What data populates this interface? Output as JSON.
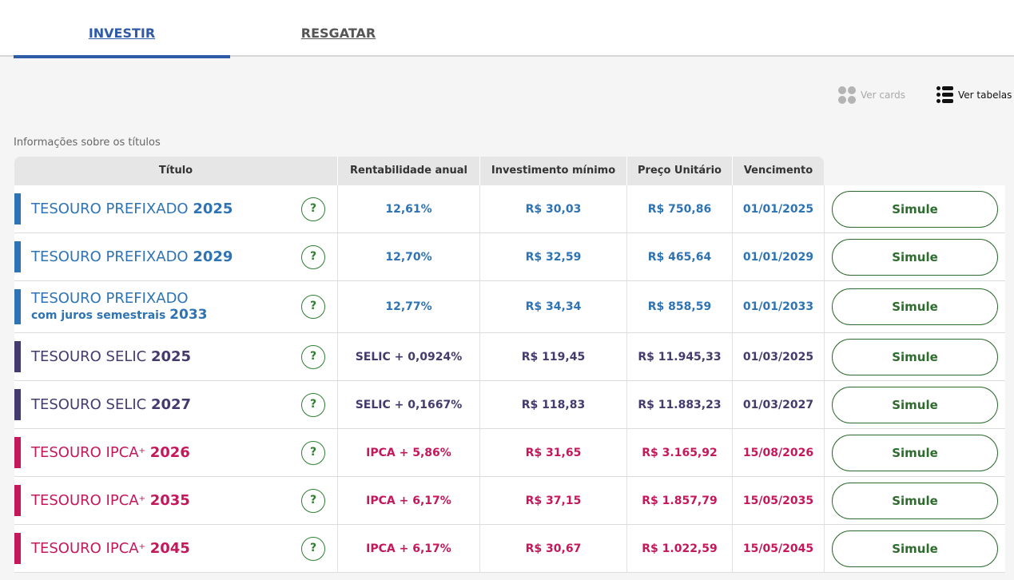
{
  "tabs": {
    "invest": "INVESTIR",
    "redeem": "RESGATAR"
  },
  "view": {
    "cards": "Ver cards",
    "tables": "Ver tabelas"
  },
  "info": "Informações sobre os títulos",
  "headers": {
    "title": "Título",
    "rentab": "Rentabilidade anual",
    "min": "Investimento mínimo",
    "price": "Preço Unitário",
    "venc": "Vencimento"
  },
  "colors": {
    "prefixado": "#2e73b3",
    "selic": "#453a6e",
    "ipca": "#c4185c",
    "button_green": "#2e6b2e"
  },
  "rows": [
    {
      "name": "TESOURO PREFIXADO",
      "year": "2025",
      "rent": "12,61%",
      "min": "R$ 30,03",
      "price": "R$ 750,86",
      "venc": "01/01/2025",
      "button": "Simule",
      "help": "?"
    },
    {
      "name": "TESOURO PREFIXADO",
      "year": "2029",
      "rent": "12,70%",
      "min": "R$ 32,59",
      "price": "R$ 465,64",
      "venc": "01/01/2029",
      "button": "Simule",
      "help": "?"
    },
    {
      "name": "TESOURO PREFIXADO",
      "sub": "com juros semestrais",
      "year": "2033",
      "rent": "12,77%",
      "min": "R$ 34,34",
      "price": "R$ 858,59",
      "venc": "01/01/2033",
      "button": "Simule",
      "help": "?"
    },
    {
      "name": "TESOURO SELIC",
      "year": "2025",
      "rent": "SELIC + 0,0924%",
      "min": "R$ 119,45",
      "price": "R$ 11.945,33",
      "venc": "01/03/2025",
      "button": "Simule",
      "help": "?"
    },
    {
      "name": "TESOURO SELIC",
      "year": "2027",
      "rent": "SELIC + 0,1667%",
      "min": "R$ 118,83",
      "price": "R$ 11.883,23",
      "venc": "01/03/2027",
      "button": "Simule",
      "help": "?"
    },
    {
      "name": "TESOURO IPCA",
      "sup": "+",
      "year": "2026",
      "rent": "IPCA + 5,86%",
      "min": "R$ 31,65",
      "price": "R$ 3.165,92",
      "venc": "15/08/2026",
      "button": "Simule",
      "help": "?"
    },
    {
      "name": "TESOURO IPCA",
      "sup": "+",
      "year": "2035",
      "rent": "IPCA + 6,17%",
      "min": "R$ 37,15",
      "price": "R$ 1.857,79",
      "venc": "15/05/2035",
      "button": "Simule",
      "help": "?"
    },
    {
      "name": "TESOURO IPCA",
      "sup": "+",
      "year": "2045",
      "rent": "IPCA + 6,17%",
      "min": "R$ 30,67",
      "price": "R$ 1.022,59",
      "venc": "15/05/2045",
      "button": "Simule",
      "help": "?"
    }
  ]
}
